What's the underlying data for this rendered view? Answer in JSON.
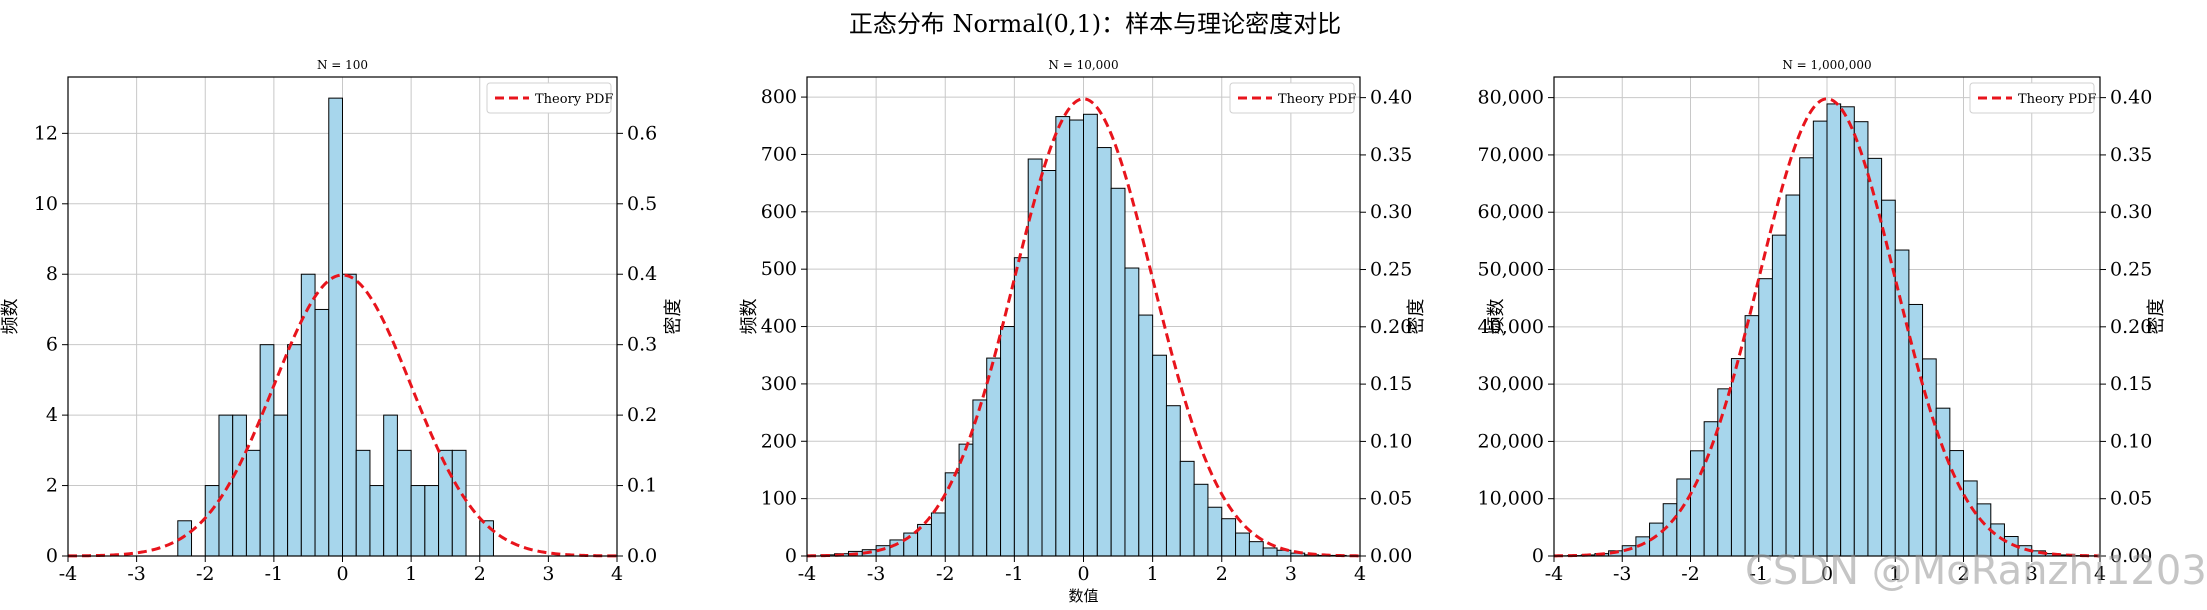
{
  "figure": {
    "suptitle": "正态分布 Normal(0,1)：样本与理论密度对比",
    "watermark": "CSDN @MoRanzhi1203"
  },
  "colors": {
    "bar_fill": "#a7d6ec",
    "bar_edge": "#000000",
    "pdf_line": "#e8141c",
    "grid": "#c8c8c8"
  },
  "chart_data": [
    {
      "type": "bar",
      "title": "N = 100",
      "xlabel": "",
      "ylabel": "频数",
      "ylabel_right": "密度",
      "xlim": [
        -4,
        4
      ],
      "xticks": [
        "-4",
        "-3",
        "-2",
        "-1",
        "0",
        "1",
        "2",
        "3",
        "4"
      ],
      "ylim": [
        0,
        13.6
      ],
      "yticks": [
        "0",
        "2",
        "4",
        "6",
        "8",
        "10",
        "12"
      ],
      "ylim_right": [
        0,
        0.68
      ],
      "yticks_right": [
        "0.0",
        "0.1",
        "0.2",
        "0.3",
        "0.4",
        "0.5",
        "0.6"
      ],
      "bin_start": -2.4,
      "bin_width": 0.2,
      "counts": [
        1,
        0,
        2,
        4,
        4,
        3,
        6,
        4,
        6,
        8,
        7,
        13,
        8,
        3,
        2,
        4,
        3,
        2,
        2,
        3,
        3,
        0,
        1
      ],
      "legend": {
        "label": "Theory PDF",
        "position": "upper right"
      },
      "series": [
        {
          "name": "Theory PDF",
          "kind": "normal_pdf",
          "mu": 0,
          "sigma": 1
        }
      ],
      "grid": true
    },
    {
      "type": "bar",
      "title": "N = 10,000",
      "xlabel": "数值",
      "ylabel": "频数",
      "ylabel_right": "密度",
      "xlim": [
        -4,
        4
      ],
      "xticks": [
        "-4",
        "-3",
        "-2",
        "-1",
        "0",
        "1",
        "2",
        "3",
        "4"
      ],
      "ylim": [
        0,
        835
      ],
      "yticks": [
        "0",
        "100",
        "200",
        "300",
        "400",
        "500",
        "600",
        "700",
        "800"
      ],
      "ylim_right": [
        0,
        0.418
      ],
      "yticks_right": [
        "0.00",
        "0.05",
        "0.10",
        "0.15",
        "0.20",
        "0.25",
        "0.30",
        "0.35",
        "0.40"
      ],
      "bin_start": -3.8,
      "bin_width": 0.2,
      "counts": [
        2,
        4,
        8,
        11,
        18,
        28,
        40,
        55,
        75,
        145,
        195,
        272,
        345,
        400,
        520,
        692,
        672,
        766,
        760,
        770,
        712,
        641,
        502,
        420,
        350,
        262,
        165,
        125,
        85,
        65,
        40,
        25,
        14,
        10,
        5,
        2,
        1,
        1
      ],
      "legend": {
        "label": "Theory PDF",
        "position": "upper right"
      },
      "series": [
        {
          "name": "Theory PDF",
          "kind": "normal_pdf",
          "mu": 0,
          "sigma": 1
        }
      ],
      "grid": true
    },
    {
      "type": "bar",
      "title": "N = 1,000,000",
      "xlabel": "",
      "ylabel": "频数",
      "ylabel_right": "密度",
      "xlim": [
        -4,
        4
      ],
      "xticks": [
        "-4",
        "-3",
        "-2",
        "-1",
        "0",
        "1",
        "2",
        "3",
        "4"
      ],
      "ylim": [
        0,
        83600
      ],
      "yticks": [
        "0",
        "10,000",
        "20,000",
        "30,000",
        "40,000",
        "50,000",
        "60,000",
        "70,000",
        "80,000"
      ],
      "ylim_right": [
        0,
        0.418
      ],
      "yticks_right": [
        "0.00",
        "0.05",
        "0.10",
        "0.15",
        "0.20",
        "0.25",
        "0.30",
        "0.35",
        "0.40"
      ],
      "bin_start": -4.0,
      "bin_width": 0.2,
      "counts": [
        27,
        73,
        181,
        417,
        905,
        1795,
        3345,
        5742,
        9127,
        13443,
        18359,
        23434,
        29175,
        34456,
        41950,
        48400,
        56000,
        63000,
        69500,
        75900,
        78900,
        78400,
        75800,
        69400,
        62100,
        53400,
        43900,
        34400,
        25800,
        18400,
        13100,
        9100,
        5600,
        3400,
        1800,
        900,
        420,
        180,
        70,
        30
      ],
      "legend": {
        "label": "Theory PDF",
        "position": "upper right"
      },
      "series": [
        {
          "name": "Theory PDF",
          "kind": "normal_pdf",
          "mu": 0,
          "sigma": 1
        }
      ],
      "grid": true
    }
  ]
}
